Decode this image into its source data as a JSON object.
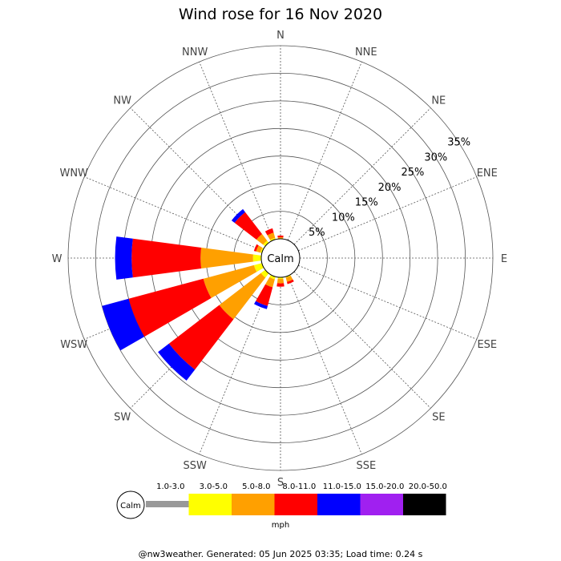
{
  "chart_data": {
    "type": "polar-stacked-bar",
    "title": "Wind rose for 16 Nov 2020",
    "directions": [
      "N",
      "NNE",
      "NE",
      "ENE",
      "E",
      "ESE",
      "SE",
      "SSE",
      "S",
      "SSW",
      "SW",
      "WSW",
      "W",
      "WNW",
      "NW",
      "NNW"
    ],
    "radial_ticks": [
      "5%",
      "10%",
      "15%",
      "20%",
      "25%",
      "30%",
      "35%"
    ],
    "radial_range_percent": [
      0,
      35
    ],
    "center_label": "Calm",
    "grid": true,
    "unit_label": "mph",
    "speed_bins": [
      {
        "label": "1.0-3.0",
        "color": "#999999"
      },
      {
        "label": "3.0-5.0",
        "color": "#ffff00"
      },
      {
        "label": "5.0-8.0",
        "color": "#ffa000"
      },
      {
        "label": "8.0-11.0",
        "color": "#ff0000"
      },
      {
        "label": "11.0-15.0",
        "color": "#0000ff"
      },
      {
        "label": "15.0-20.0",
        "color": "#a020f0"
      },
      {
        "label": "20.0-50.0",
        "color": "#000000"
      }
    ],
    "series": [
      {
        "direction": "WNW",
        "values": [
          0,
          0.3,
          0.8,
          0.4,
          0,
          0,
          0
        ]
      },
      {
        "direction": "NW",
        "values": [
          0,
          0.5,
          1.5,
          5.0,
          0.7,
          0,
          0
        ]
      },
      {
        "direction": "NNW",
        "values": [
          0,
          0.3,
          1.0,
          0.8,
          0,
          0,
          0
        ]
      },
      {
        "direction": "W",
        "values": [
          0,
          1.5,
          9.5,
          12.5,
          3.0,
          0,
          0
        ]
      },
      {
        "direction": "WSW",
        "values": [
          0,
          1.5,
          9.5,
          14.0,
          5.0,
          0,
          0
        ]
      },
      {
        "direction": "SW",
        "values": [
          0,
          1.0,
          9.5,
          11.5,
          2.5,
          0,
          0
        ]
      },
      {
        "direction": "SSW",
        "values": [
          0,
          0.5,
          1.5,
          3.5,
          0.6,
          0,
          0
        ]
      },
      {
        "direction": "S",
        "values": [
          0,
          0.3,
          0.8,
          0.6,
          0,
          0,
          0
        ]
      },
      {
        "direction": "SSE",
        "values": [
          0,
          0.2,
          0.8,
          0.4,
          0,
          0,
          0
        ]
      },
      {
        "direction": "N",
        "values": [
          0,
          0,
          0.3,
          0.3,
          0,
          0,
          0
        ]
      }
    ]
  },
  "footer": "@nw3weather. Generated: 05 Jun 2025 03:35; Load time: 0.24 s"
}
